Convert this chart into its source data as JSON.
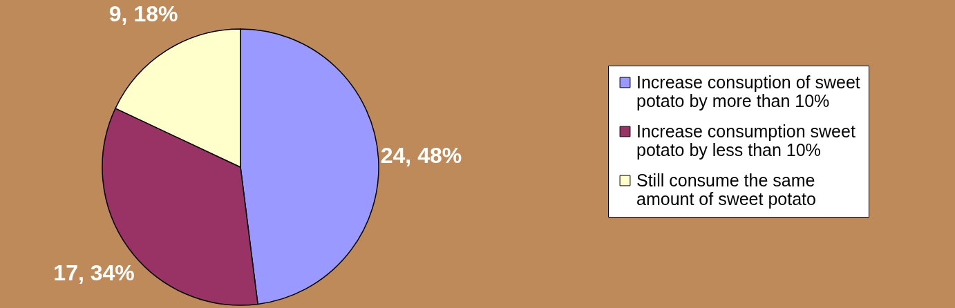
{
  "chart_data": {
    "type": "pie",
    "categories": [
      "Increase consuption of sweet potato by more than 10%",
      " Increase consumption sweet potato by less than 10%",
      "Still consume the same amount of sweet potato"
    ],
    "values": [
      24,
      17,
      9
    ],
    "colors": [
      "#9999ff",
      "#993366",
      "#ffffcc"
    ],
    "value_labels": [
      "24, 48%",
      "17, 34%",
      "9, 18%"
    ],
    "legend": "right"
  }
}
